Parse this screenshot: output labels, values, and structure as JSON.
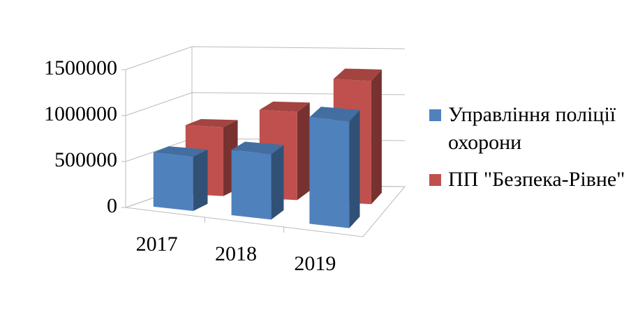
{
  "chart_data": {
    "type": "bar3d",
    "categories": [
      "2017",
      "2018",
      "2019"
    ],
    "series": [
      {
        "name": "Управління поліції охорони",
        "color": "#4f81bd",
        "values": [
          590000,
          710000,
          1160000
        ]
      },
      {
        "name": "ПП \"Безпека-Рівне\"",
        "color": "#c0504d",
        "values": [
          750000,
          960000,
          1340000
        ]
      }
    ],
    "ylim": [
      0,
      1500000
    ],
    "yticks": [
      0,
      500000,
      1000000,
      1500000
    ],
    "grid": true,
    "legend": "right"
  }
}
